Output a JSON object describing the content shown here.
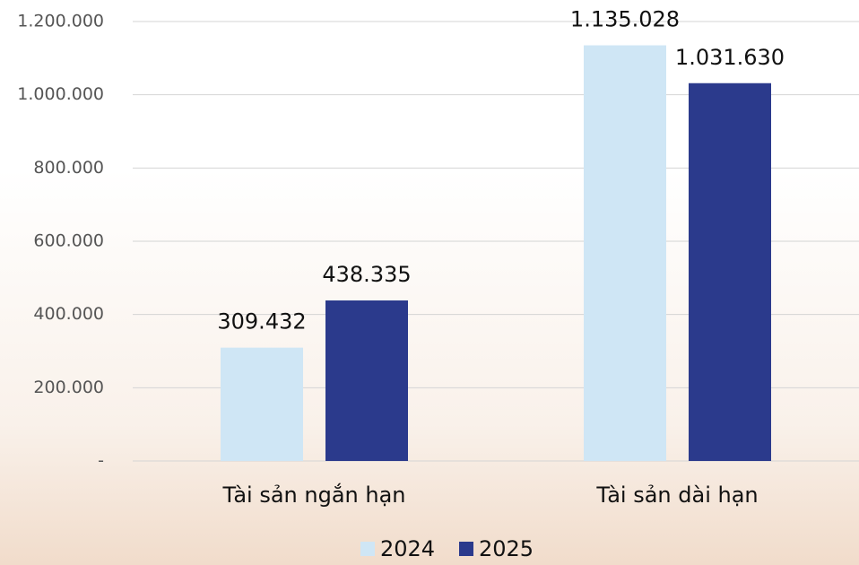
{
  "chart_data": {
    "type": "bar",
    "categories": [
      "Tài sản ngắn hạn",
      "Tài sản dài hạn"
    ],
    "series": [
      {
        "name": "2024",
        "color": "#cfe6f5",
        "values": [
          309432,
          1135028
        ],
        "value_labels": [
          "309.432",
          "1.135.028"
        ]
      },
      {
        "name": "2025",
        "color": "#2b3a8c",
        "values": [
          438335,
          1031630
        ],
        "value_labels": [
          "438.335",
          "1.031.630"
        ]
      }
    ],
    "ylim": [
      0,
      1200000
    ],
    "yticks": [
      {
        "value": 0,
        "label": "-"
      },
      {
        "value": 200000,
        "label": "200.000"
      },
      {
        "value": 400000,
        "label": "400.000"
      },
      {
        "value": 600000,
        "label": "600.000"
      },
      {
        "value": 800000,
        "label": "800.000"
      },
      {
        "value": 1000000,
        "label": "1.000.000"
      },
      {
        "value": 1200000,
        "label": "1.200.000"
      }
    ],
    "grid": true,
    "legend": "bottom"
  }
}
